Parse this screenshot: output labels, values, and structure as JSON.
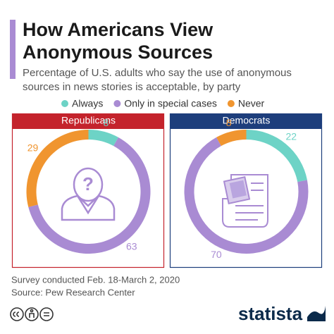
{
  "chart_data": {
    "type": "donut",
    "title": [
      "How Americans View",
      "Anonymous Sources"
    ],
    "subtitle": [
      "Percentage of U.S. adults who say the use of anonymous",
      "sources in news stories is acceptable, by party"
    ],
    "categories": [
      "Always",
      "Only in special cases",
      "Never"
    ],
    "colors": [
      "#6dd3c6",
      "#a98bd3",
      "#f0952f"
    ],
    "series": [
      {
        "name": "Republicans",
        "color": "#c4232c",
        "values": [
          8,
          63,
          29
        ]
      },
      {
        "name": "Democrats",
        "color": "#1d3e7c",
        "values": [
          22,
          70,
          8
        ]
      }
    ]
  },
  "notes": [
    "Survey conducted Feb. 18-March 2, 2020",
    "Source: Pew Research Center"
  ],
  "brand": "statista"
}
